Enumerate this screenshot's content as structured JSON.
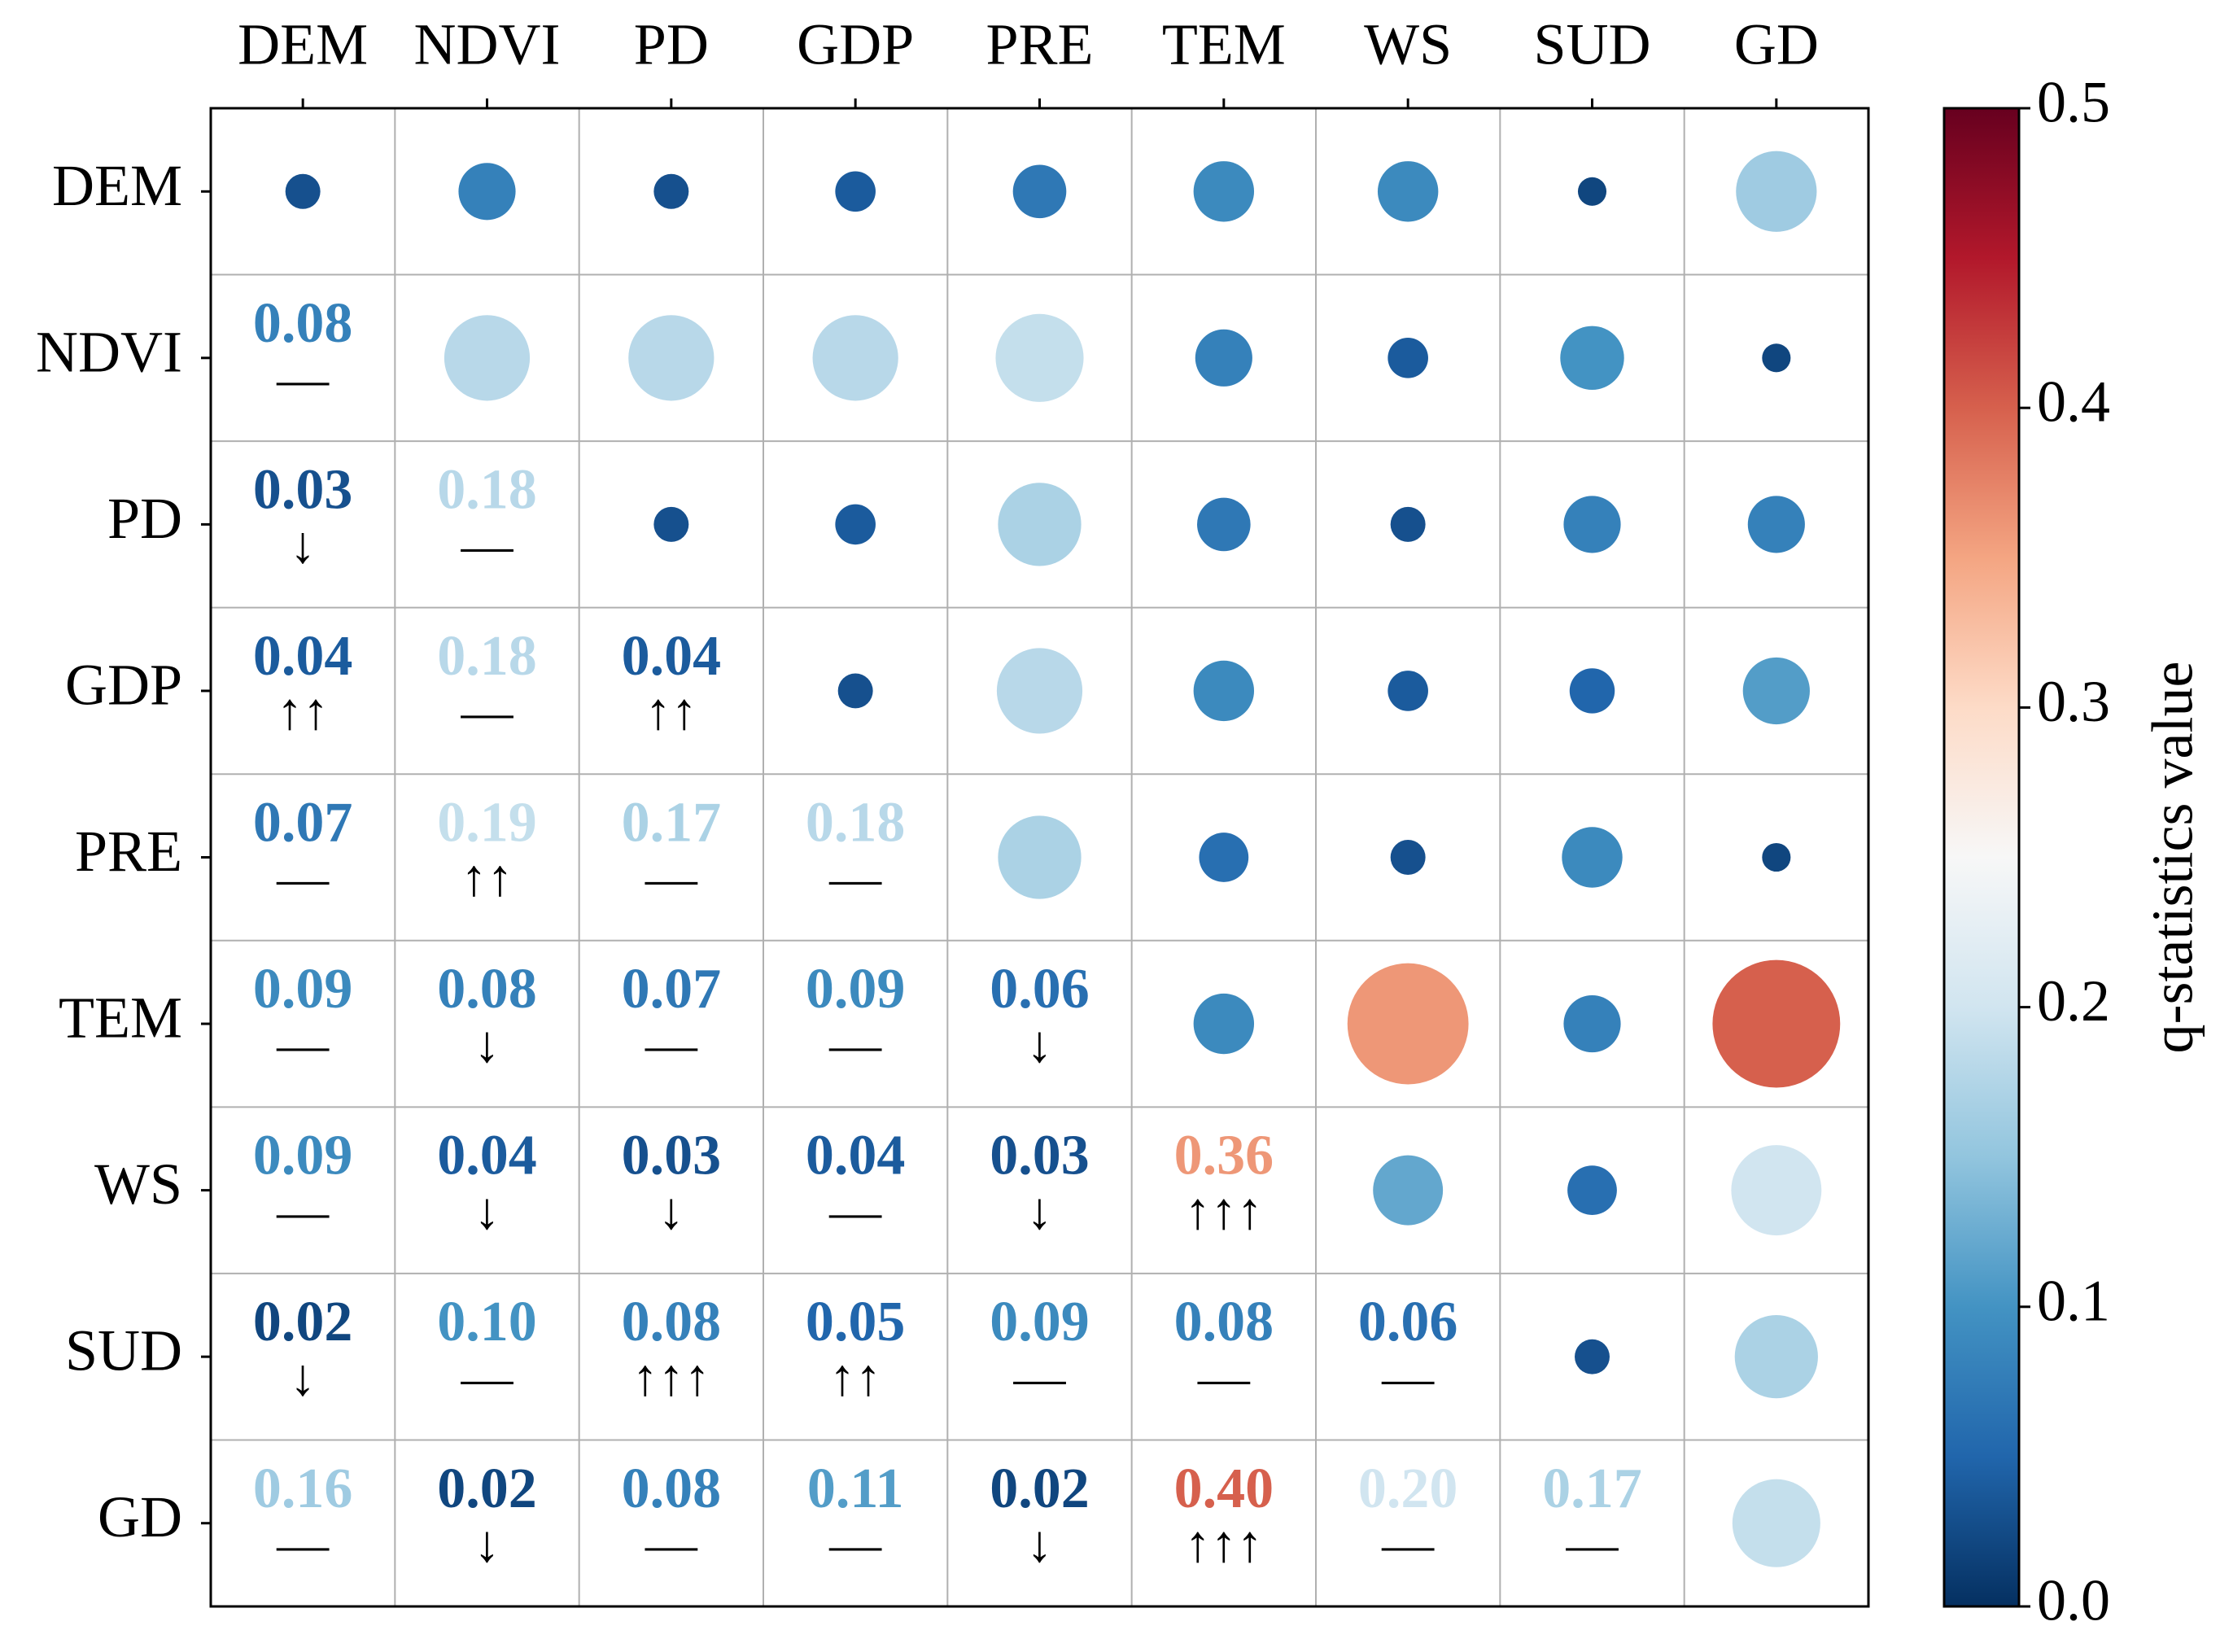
{
  "chart_data": {
    "type": "correlogram",
    "categories": [
      "DEM",
      "NDVI",
      "PD",
      "GDP",
      "PRE",
      "TEM",
      "WS",
      "SUD",
      "GD"
    ],
    "values": [
      [
        0.03,
        null,
        null,
        null,
        null,
        null,
        null,
        null,
        null
      ],
      [
        0.08,
        0.18,
        null,
        null,
        null,
        null,
        null,
        null,
        null
      ],
      [
        0.03,
        0.18,
        0.03,
        null,
        null,
        null,
        null,
        null,
        null
      ],
      [
        0.04,
        0.18,
        0.04,
        0.03,
        null,
        null,
        null,
        null,
        null
      ],
      [
        0.07,
        0.19,
        0.17,
        0.18,
        0.17,
        null,
        null,
        null,
        null
      ],
      [
        0.09,
        0.08,
        0.07,
        0.09,
        0.06,
        0.09,
        null,
        null,
        null
      ],
      [
        0.09,
        0.04,
        0.03,
        0.04,
        0.03,
        0.36,
        0.12,
        null,
        null
      ],
      [
        0.02,
        0.1,
        0.08,
        0.05,
        0.09,
        0.08,
        0.06,
        0.03,
        null
      ],
      [
        0.16,
        0.02,
        0.08,
        0.11,
        0.02,
        0.4,
        0.2,
        0.17,
        0.19
      ]
    ],
    "value_labels": [
      [
        null,
        null,
        null,
        null,
        null,
        null,
        null,
        null,
        null
      ],
      [
        "0.08",
        null,
        null,
        null,
        null,
        null,
        null,
        null,
        null
      ],
      [
        "0.03",
        "0.18",
        null,
        null,
        null,
        null,
        null,
        null,
        null
      ],
      [
        "0.04",
        "0.18",
        "0.04",
        null,
        null,
        null,
        null,
        null,
        null
      ],
      [
        "0.07",
        "0.19",
        "0.17",
        "0.18",
        null,
        null,
        null,
        null,
        null
      ],
      [
        "0.09",
        "0.08",
        "0.07",
        "0.09",
        "0.06",
        null,
        null,
        null,
        null
      ],
      [
        "0.09",
        "0.04",
        "0.03",
        "0.04",
        "0.03",
        "0.36",
        null,
        null,
        null
      ],
      [
        "0.02",
        "0.10",
        "0.08",
        "0.05",
        "0.09",
        "0.08",
        "0.06",
        null,
        null
      ],
      [
        "0.16",
        "0.02",
        "0.08",
        "0.11",
        "0.02",
        "0.40",
        "0.20",
        "0.17",
        null
      ]
    ],
    "markers": [
      [
        null,
        null,
        null,
        null,
        null,
        null,
        null,
        null,
        null
      ],
      [
        "—",
        null,
        null,
        null,
        null,
        null,
        null,
        null,
        null
      ],
      [
        "↓",
        "—",
        null,
        null,
        null,
        null,
        null,
        null,
        null
      ],
      [
        "↑↑",
        "—",
        "↑↑",
        null,
        null,
        null,
        null,
        null,
        null
      ],
      [
        "—",
        "↑↑",
        "—",
        "—",
        null,
        null,
        null,
        null,
        null
      ],
      [
        "—",
        "↓",
        "—",
        "—",
        "↓",
        null,
        null,
        null,
        null
      ],
      [
        "—",
        "↓",
        "↓",
        "—",
        "↓",
        "↑↑↑",
        null,
        null,
        null
      ],
      [
        "↓",
        "—",
        "↑↑↑",
        "↑↑",
        "—",
        "—",
        "—",
        null,
        null
      ],
      [
        "—",
        "↓",
        "—",
        "—",
        "↓",
        "↑↑↑",
        "—",
        "—",
        null
      ]
    ],
    "colormap": [
      "#053061",
      "#2166ac",
      "#4393c3",
      "#92c5de",
      "#d1e5f0",
      "#f7f7f7",
      "#fddbc7",
      "#f4a582",
      "#d6604d",
      "#b2182b",
      "#67001f"
    ],
    "colorbar_label": "q-statistics value",
    "ylim": [
      0,
      0.5
    ],
    "yticks": [
      {
        "value": 0,
        "label": "0.0"
      },
      0.1,
      0.2,
      0.3,
      0.4,
      0.5
    ],
    "grid": true
  }
}
